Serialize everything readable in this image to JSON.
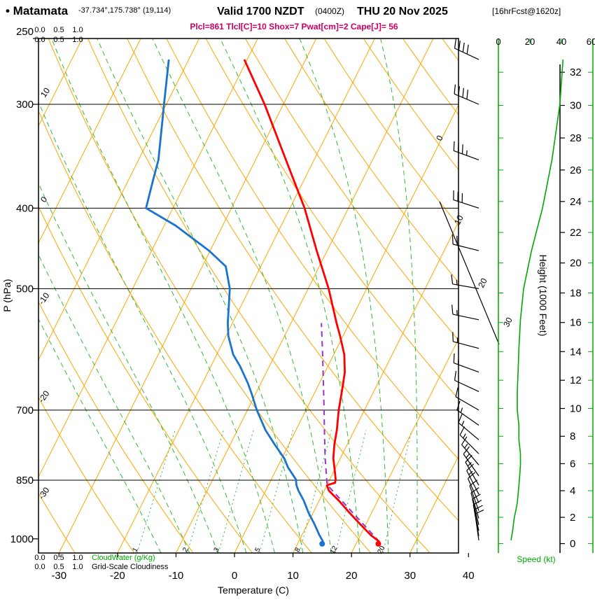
{
  "header": {
    "station": "• Matamata",
    "coords": "-37.734°,175.738° (19,114)",
    "valid1": "Valid 1700 NZDT",
    "valid2": "(0400Z)",
    "valid3": "THU 20 Nov 2025",
    "valid4": "[16hrFcst@1620z]",
    "params": "Plcl=861 Tlcl[C]=10 Shox=7 Pwat[cm]=2 Cape[J]= 56"
  },
  "axes": {
    "pressure_title": "P (hPa)",
    "temp_title": "Temperature (C)",
    "height_title": "Height (1000 Feet)",
    "speed_title": "Speed (kt)",
    "cloudwater_title": "CloudWater (g/Kg)",
    "cloudiness_title": "Grid-Scale Cloudiness",
    "cloud_scale": [
      "0.0",
      "0.5",
      "1.0"
    ]
  },
  "chart_data": {
    "type": "skewt",
    "pressure_axis_hpa": [
      250,
      1040
    ],
    "pressure_ticks_hpa": [
      250,
      300,
      400,
      500,
      700,
      850,
      1000
    ],
    "temp_ticks_c": [
      -30,
      -20,
      -10,
      0,
      10,
      20,
      30,
      40
    ],
    "height_ticks_kft": [
      0,
      2,
      4,
      6,
      8,
      10,
      12,
      14,
      16,
      18,
      20,
      22,
      24,
      26,
      28,
      30,
      32
    ],
    "speed_ticks_kt": [
      0,
      20,
      40,
      60
    ],
    "isotherm_step_c": 10,
    "dry_adiabat_labels_c": [
      10,
      0,
      -10,
      -20,
      -30
    ],
    "isotherm_edge_labels_c": [
      0,
      10,
      20,
      30
    ],
    "mixing_ratio_lines_gkg": [
      1,
      2,
      3,
      5,
      8,
      12,
      20
    ],
    "moist_adiabats_c": [
      -15,
      -10,
      -5,
      0,
      5,
      10,
      15,
      20,
      25,
      30
    ],
    "indices": {
      "plcl_hpa": 861,
      "tlcl_c": 10,
      "showalter": 7,
      "pwat_cm": 2,
      "cape_j": 56
    },
    "surface_markers": {
      "pressure_hpa": 1008,
      "temp_c": 23.8,
      "dewpoint_c": 14.2
    },
    "temperature_profile": [
      [
        1008,
        23.8
      ],
      [
        990,
        21.8
      ],
      [
        960,
        19.0
      ],
      [
        930,
        16.2
      ],
      [
        900,
        13.4
      ],
      [
        875,
        10.8
      ],
      [
        862,
        10.0
      ],
      [
        856,
        11.2
      ],
      [
        848,
        11.0
      ],
      [
        830,
        10.2
      ],
      [
        800,
        8.8
      ],
      [
        770,
        7.8
      ],
      [
        740,
        7.0
      ],
      [
        700,
        5.6
      ],
      [
        660,
        4.4
      ],
      [
        630,
        3.4
      ],
      [
        600,
        1.8
      ],
      [
        570,
        -0.5
      ],
      [
        550,
        -2.2
      ],
      [
        500,
        -6.5
      ],
      [
        450,
        -11.8
      ],
      [
        400,
        -17.5
      ],
      [
        350,
        -24.8
      ],
      [
        300,
        -33.2
      ],
      [
        265,
        -40.5
      ]
    ],
    "dewpoint_profile": [
      [
        1008,
        14.2
      ],
      [
        990,
        13.0
      ],
      [
        960,
        11.2
      ],
      [
        930,
        9.2
      ],
      [
        900,
        7.4
      ],
      [
        875,
        5.6
      ],
      [
        862,
        4.8
      ],
      [
        848,
        4.2
      ],
      [
        820,
        1.8
      ],
      [
        800,
        0.4
      ],
      [
        770,
        -2.4
      ],
      [
        740,
        -5.2
      ],
      [
        700,
        -8.4
      ],
      [
        670,
        -10.6
      ],
      [
        650,
        -12.2
      ],
      [
        620,
        -15.0
      ],
      [
        600,
        -17.2
      ],
      [
        570,
        -19.6
      ],
      [
        550,
        -20.8
      ],
      [
        500,
        -23.4
      ],
      [
        470,
        -26.0
      ],
      [
        450,
        -30.2
      ],
      [
        420,
        -38.0
      ],
      [
        400,
        -44.6
      ],
      [
        370,
        -45.8
      ],
      [
        350,
        -46.6
      ],
      [
        320,
        -48.8
      ],
      [
        300,
        -50.4
      ],
      [
        265,
        -53.4
      ]
    ],
    "parcel_profile": [
      [
        1008,
        23.8
      ],
      [
        861,
        10.0
      ],
      [
        800,
        7.4
      ],
      [
        750,
        5.3
      ],
      [
        700,
        3.1
      ],
      [
        650,
        0.7
      ],
      [
        600,
        -1.9
      ],
      [
        550,
        -4.8
      ]
    ],
    "wind_profile": [
      [
        265,
        41,
        295
      ],
      [
        300,
        39,
        293
      ],
      [
        350,
        34,
        290
      ],
      [
        400,
        28,
        288
      ],
      [
        450,
        21,
        284
      ],
      [
        500,
        16,
        280
      ],
      [
        545,
        14,
        282
      ],
      [
        590,
        13,
        285
      ],
      [
        630,
        12.5,
        290
      ],
      [
        665,
        12,
        295
      ],
      [
        700,
        12,
        300
      ],
      [
        730,
        13,
        305
      ],
      [
        760,
        13,
        310
      ],
      [
        790,
        14,
        315
      ],
      [
        815,
        14,
        320
      ],
      [
        840,
        13.5,
        325
      ],
      [
        862,
        13,
        330
      ],
      [
        884,
        12.5,
        333
      ],
      [
        905,
        12,
        336
      ],
      [
        925,
        11,
        340
      ],
      [
        945,
        10,
        343
      ],
      [
        962,
        9.5,
        346
      ],
      [
        978,
        9,
        348
      ],
      [
        992,
        8.5,
        350
      ],
      [
        1004,
        8,
        352
      ]
    ],
    "colors": {
      "orange": "#FFA500",
      "green_lines": "#33BB33",
      "green_axis": "#00AA00",
      "red": "#FF0000",
      "blue": "#1874CD",
      "purple": "#9932CC",
      "params": "#CC0066",
      "black": "#000000"
    }
  }
}
